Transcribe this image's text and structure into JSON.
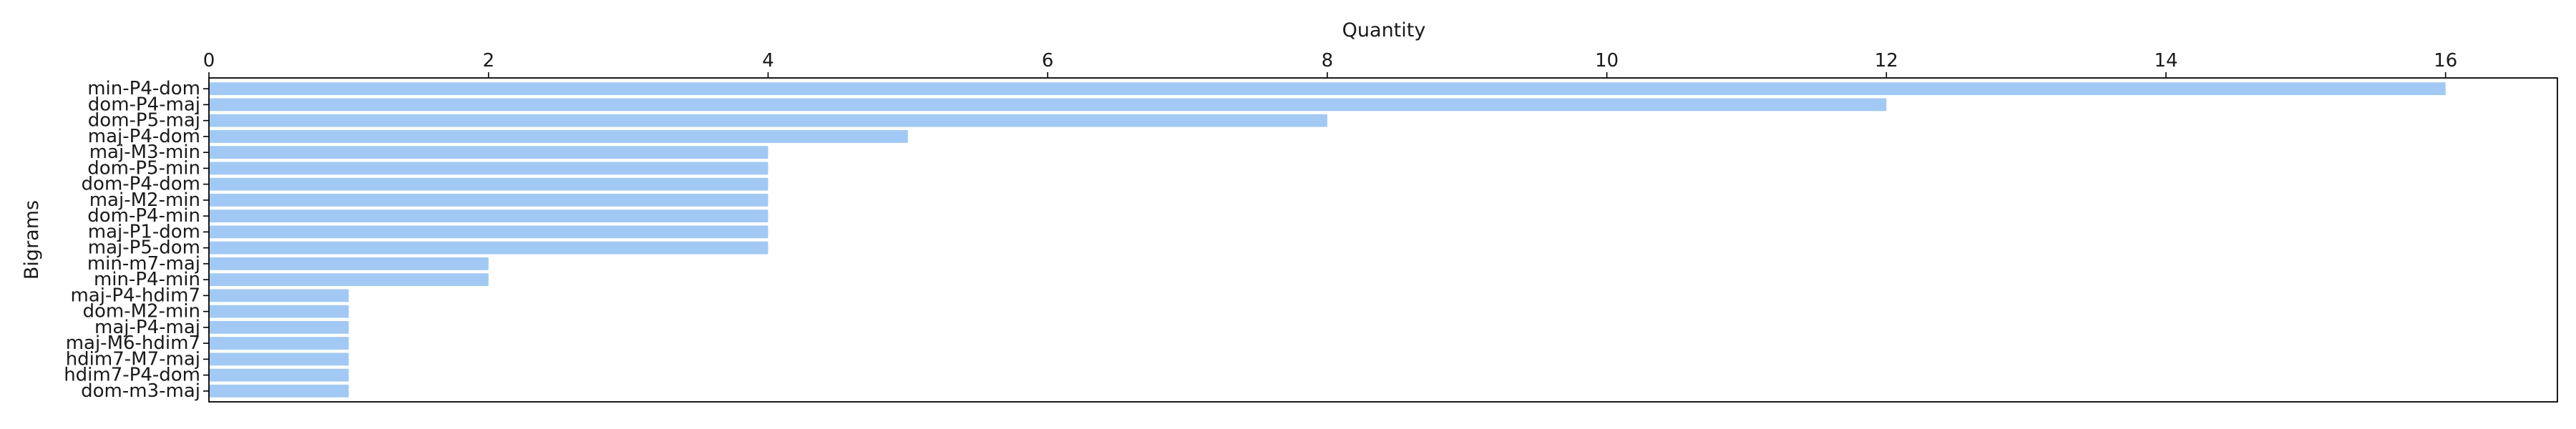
{
  "chart_data": {
    "type": "bar",
    "orientation": "horizontal",
    "xlabel": "Quantity",
    "ylabel": "Bigrams",
    "xlim": [
      0,
      16.8
    ],
    "xticks": [
      0,
      2,
      4,
      6,
      8,
      10,
      12,
      14,
      16
    ],
    "x_axis_position": "top",
    "grid": false,
    "legend": "none",
    "bar_color": "#a1c9f4",
    "categories": [
      "min-P4-dom",
      "dom-P4-maj",
      "dom-P5-maj",
      "maj-P4-dom",
      "maj-M3-min",
      "dom-P5-min",
      "dom-P4-dom",
      "maj-M2-min",
      "dom-P4-min",
      "maj-P1-dom",
      "maj-P5-dom",
      "min-m7-maj",
      "min-P4-min",
      "maj-P4-hdim7",
      "dom-M2-min",
      "maj-P4-maj",
      "maj-M6-hdim7",
      "hdim7-M7-maj",
      "hdim7-P4-dom",
      "dom-m3-maj"
    ],
    "values": [
      16,
      12,
      8,
      5,
      4,
      4,
      4,
      4,
      4,
      4,
      4,
      2,
      2,
      1,
      1,
      1,
      1,
      1,
      1,
      1
    ]
  }
}
